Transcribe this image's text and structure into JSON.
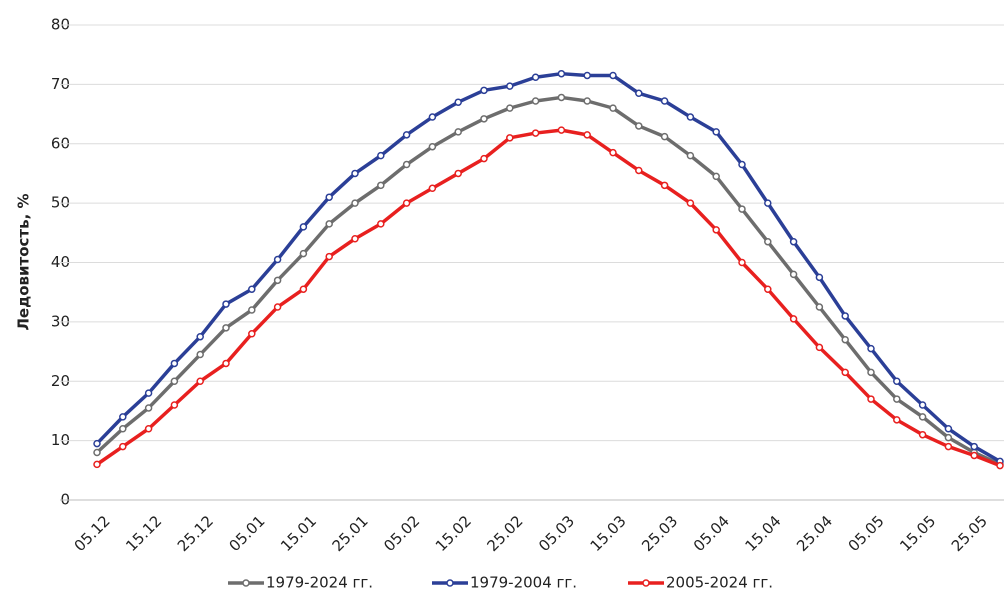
{
  "chart_data": {
    "type": "line",
    "y_label": "Ледовитость, %",
    "categories": [
      "05.12",
      null,
      "15.12",
      null,
      "25.12",
      null,
      "05.01",
      null,
      "15.01",
      null,
      "25.01",
      null,
      "05.02",
      null,
      "15.02",
      null,
      "25.02",
      null,
      "05.03",
      null,
      "15.03",
      null,
      "25.03",
      null,
      "05.04",
      null,
      "15.04",
      null,
      "25.04",
      null,
      "05.05",
      null,
      "15.05",
      null,
      "25.05",
      null
    ],
    "series": [
      {
        "name": "1979-2024 гг.",
        "color": "#6d6d6d",
        "values": [
          8,
          12,
          15.5,
          20,
          24.5,
          29,
          32,
          37,
          41.5,
          46.5,
          50,
          53,
          56.5,
          59.5,
          62,
          64.2,
          66,
          67.2,
          67.8,
          67.2,
          66,
          63,
          61.2,
          58,
          54.5,
          49,
          43.5,
          38,
          32.5,
          27,
          21.5,
          17,
          14,
          10.5,
          8,
          6
        ]
      },
      {
        "name": "1979-2004 гг.",
        "color": "#2b3f97",
        "values": [
          9.5,
          14,
          18,
          23,
          27.5,
          33,
          35.5,
          40.5,
          46,
          51,
          55,
          58,
          61.5,
          64.5,
          67,
          69,
          69.7,
          71.2,
          71.8,
          71.5,
          71.5,
          68.5,
          67.2,
          64.5,
          62,
          56.5,
          50,
          43.5,
          37.5,
          31,
          25.5,
          20,
          16,
          12,
          9,
          6.5
        ]
      },
      {
        "name": "2005-2024 гг.",
        "color": "#e8201f",
        "values": [
          6,
          9,
          12,
          16,
          20,
          23,
          28,
          32.5,
          35.5,
          41,
          44,
          46.5,
          50,
          52.5,
          55,
          57.5,
          61,
          61.8,
          62.3,
          61.5,
          58.5,
          55.5,
          53,
          50,
          45.5,
          40,
          35.5,
          30.5,
          25.7,
          21.5,
          17,
          13.5,
          11,
          9,
          7.5,
          5.8
        ]
      }
    ],
    "ylim": [
      0,
      80
    ],
    "yticks": [
      0,
      10,
      20,
      30,
      40,
      50,
      60,
      70,
      80
    ],
    "grid": true
  }
}
